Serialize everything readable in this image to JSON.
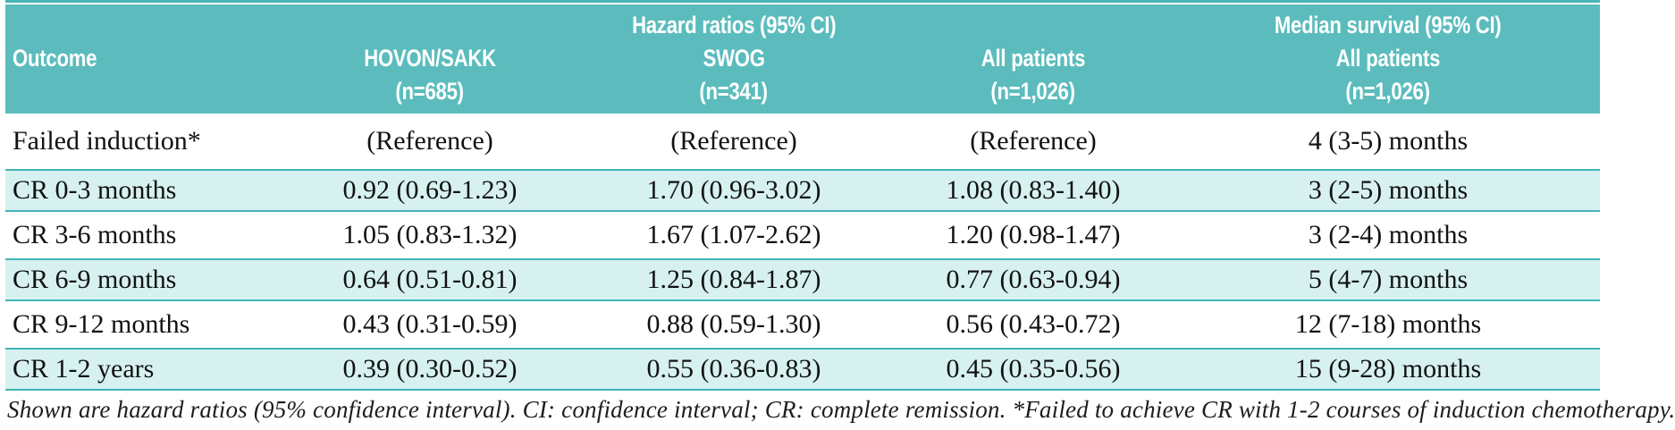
{
  "table": {
    "header": {
      "outcome": "Outcome",
      "hovon_name": "HOVON/SAKK",
      "hovon_n": "(n=685)",
      "group_title": "Hazard ratios (95% CI)",
      "swog_name": "SWOG",
      "swog_n": "(n=341)",
      "all_name": "All patients",
      "all_n": "(n=1,026)",
      "median_title": "Median survival (95% CI)",
      "median_name": "All patients",
      "median_n": "(n=1,026)"
    },
    "rows": [
      {
        "outcome": "Failed induction*",
        "hovon": "(Reference)",
        "swog": "(Reference)",
        "all": "(Reference)",
        "median": "4 (3-5) months"
      },
      {
        "outcome": "CR 0-3 months",
        "hovon": "0.92 (0.69-1.23)",
        "swog": "1.70 (0.96-3.02)",
        "all": "1.08 (0.83-1.40)",
        "median": "3 (2-5) months"
      },
      {
        "outcome": "CR 3-6 months",
        "hovon": "1.05 (0.83-1.32)",
        "swog": "1.67 (1.07-2.62)",
        "all": "1.20 (0.98-1.47)",
        "median": "3 (2-4) months"
      },
      {
        "outcome": "CR 6-9 months",
        "hovon": "0.64 (0.51-0.81)",
        "swog": "1.25 (0.84-1.87)",
        "all": "0.77 (0.63-0.94)",
        "median": "5 (4-7) months"
      },
      {
        "outcome": "CR 9-12 months",
        "hovon": "0.43 (0.31-0.59)",
        "swog": "0.88 (0.59-1.30)",
        "all": "0.56 (0.43-0.72)",
        "median": "12 (7-18) months"
      },
      {
        "outcome": "CR 1-2 years",
        "hovon": "0.39 (0.30-0.52)",
        "swog": "0.55 (0.36-0.83)",
        "all": "0.45 (0.35-0.56)",
        "median": "15 (9-28) months"
      }
    ],
    "footnote": "Shown are hazard ratios (95% confidence interval). CI: confidence interval; CR: complete remission. *Failed to achieve CR with 1-2 courses of induction chemotherapy.",
    "colors": {
      "header_bg": "#5cbcbd",
      "shaded_row_bg": "#d6f1f0",
      "rule": "#41b5b6",
      "text": "#121212"
    }
  }
}
